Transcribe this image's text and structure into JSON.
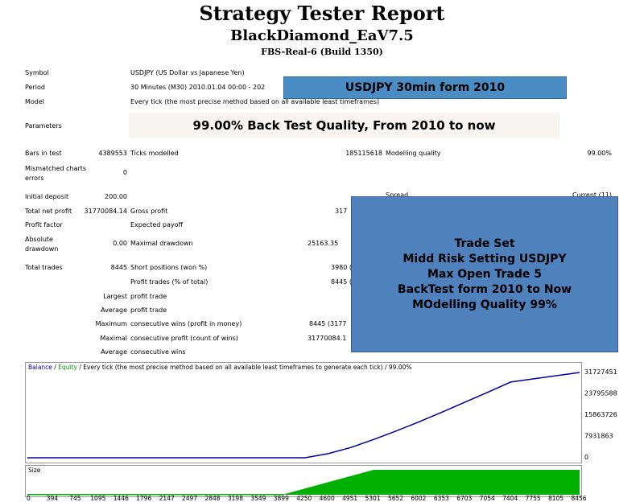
{
  "header": {
    "title": "Strategy Tester Report",
    "ea_name": "BlackDiamond_EaV7.5",
    "server": "FBS-Real-6 (Build 1350)"
  },
  "info": {
    "symbol_label": "Symbol",
    "symbol_value": "USDJPY (US Dollar vs Japanese Yen)",
    "period_label": "Period",
    "period_value": "30 Minutes (M30) 2010.01.04 00:00 - 202",
    "model_label": "Model",
    "model_value": "Every tick (the most precise method based on all available least timeframes)",
    "parameters_label": "Parameters"
  },
  "overlays": {
    "period_banner": "USDJPY 30min form 2010",
    "parameters_banner": "99.00% Back Test Quality, From 2010 to now",
    "trade_set_lines": [
      "Trade Set",
      "Midd Risk Setting USDJPY",
      "Max Open Trade 5",
      "BackTest form 2010 to Now",
      "MOdelling Quality 99%"
    ]
  },
  "stats": {
    "bars_label": "Bars in test",
    "bars_value": "4389553",
    "ticks_label": "Ticks modelled",
    "ticks_value": "185115618",
    "mq_label": "Modelling quality",
    "mq_value": "99.00%",
    "mismatch_label": "Mismatched charts errors",
    "mismatch_value": "0",
    "deposit_label": "Initial deposit",
    "deposit_value": "200.00",
    "spread_label": "Spread",
    "spread_value": "Current (11)",
    "net_label": "Total net profit",
    "net_value": "31770084.14",
    "gross_profit_label": "Gross profit",
    "gross_profit_value": "317",
    "pf_label": "Profit factor",
    "ep_label": "Expected payoff",
    "abs_dd_label": "Absolute drawdown",
    "abs_dd_value": "0.00",
    "max_dd_label": "Maximal drawdown",
    "max_dd_value": "25163.35",
    "total_trades_label": "Total trades",
    "total_trades_value": "8445",
    "short_label": "Short positions (won %)",
    "short_value": "3980 (1",
    "profit_trades_label": "Profit trades (% of total)",
    "profit_trades_value": "8445 (1",
    "largest_label": "Largest",
    "largest_sub": "profit trade",
    "average_label": "Average",
    "average_sub": "profit trade",
    "maximum_label": "Maximum",
    "maximum_sub": "consecutive wins (profit in money)",
    "maximum_value": "8445 (3177",
    "maximal_label": "Maximal",
    "maximal_sub": "consecutive profit (count of wins)",
    "maximal_value": "31770084.1",
    "average2_label": "Average",
    "average2_sub": "consecutive wins"
  },
  "chart_legend": {
    "balance": "Balance",
    "sep": " / ",
    "equity": "Equity",
    "rest": " / Every tick (the most precise method based on all available least timeframes to generate each tick) / 99.00%"
  },
  "size_label": "Size",
  "chart_data": {
    "type": "line",
    "series": [
      {
        "name": "Balance",
        "values": [
          200,
          200,
          200,
          200,
          200,
          200,
          200,
          200,
          200,
          200,
          200,
          300,
          700,
          1500000,
          3800000,
          6800000,
          10000000,
          13400000,
          17000000,
          20700000,
          24400000,
          28200000,
          31727451
        ]
      },
      {
        "name": "Equity",
        "values": [
          200,
          200,
          200,
          200,
          200,
          200,
          200,
          200,
          200,
          200,
          200,
          300,
          700,
          1500000,
          3800000,
          6800000,
          10000000,
          13400000,
          17000000,
          20700000,
          24400000,
          28200000,
          31727451
        ]
      }
    ],
    "x": [
      0,
      394,
      745,
      1095,
      1446,
      1796,
      2147,
      2497,
      2848,
      3198,
      3549,
      3899,
      4250,
      4600,
      4951,
      5301,
      5652,
      6002,
      6353,
      6703,
      7054,
      7404,
      8456
    ],
    "y_ticks": [
      "31727451",
      "23795588",
      "15863726",
      "7931863",
      "0"
    ],
    "y_tick_values": [
      31727451,
      23795588,
      15863726,
      7931863,
      0
    ],
    "x_ticks": [
      "0",
      "394",
      "745",
      "1095",
      "1446",
      "1796",
      "2147",
      "2497",
      "2848",
      "3198",
      "3549",
      "3899",
      "4250",
      "4600",
      "4951",
      "5301",
      "5652",
      "6002",
      "6353",
      "6703",
      "7054",
      "7404",
      "7755",
      "8105",
      "8456"
    ],
    "ylim": [
      0,
      31727451
    ],
    "xlim": [
      0,
      8456
    ],
    "size_bars": {
      "start_x": 3899,
      "ramp_end_x": 5301,
      "end_x": 8456
    },
    "colors": {
      "balance": "#0000a0",
      "equity": "#00a000",
      "size": "#00b000"
    }
  }
}
